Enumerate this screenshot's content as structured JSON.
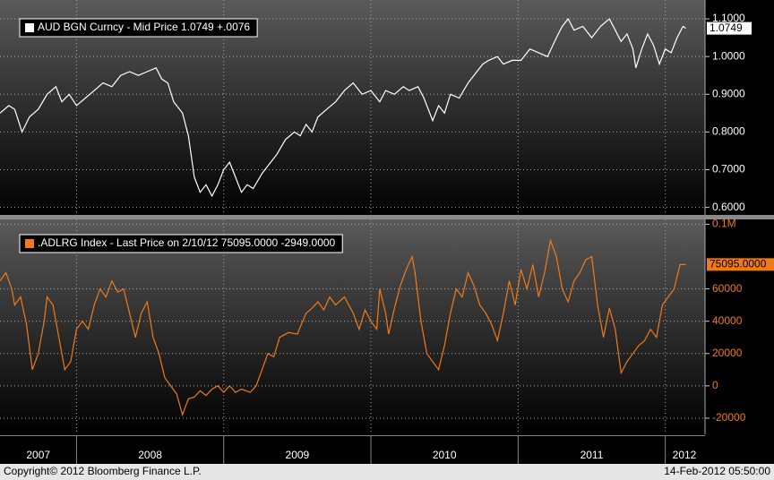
{
  "chart_data": [
    {
      "type": "line",
      "legend": "AUD BGN Curncy - Mid Price  1.0749  +.0076",
      "last_value_label": "1.0749",
      "series": [
        {
          "name": "AUD BGN Curncy",
          "color": "#ffffff",
          "x": [
            2007.48,
            2007.54,
            2007.58,
            2007.63,
            2007.68,
            2007.74,
            2007.8,
            2007.86,
            2007.9,
            2007.95,
            2008.0,
            2008.06,
            2008.12,
            2008.18,
            2008.24,
            2008.3,
            2008.36,
            2008.42,
            2008.48,
            2008.54,
            2008.58,
            2008.62,
            2008.66,
            2008.72,
            2008.76,
            2008.8,
            2008.84,
            2008.88,
            2008.92,
            2008.96,
            2009.0,
            2009.04,
            2009.08,
            2009.12,
            2009.16,
            2009.2,
            2009.26,
            2009.3,
            2009.36,
            2009.42,
            2009.48,
            2009.52,
            2009.56,
            2009.6,
            2009.64,
            2009.7,
            2009.76,
            2009.82,
            2009.88,
            2009.94,
            2010.0,
            2010.06,
            2010.1,
            2010.16,
            2010.22,
            2010.26,
            2010.32,
            2010.36,
            2010.42,
            2010.46,
            2010.5,
            2010.54,
            2010.6,
            2010.66,
            2010.72,
            2010.76,
            2010.8,
            2010.86,
            2010.9,
            2010.96,
            2011.02,
            2011.08,
            2011.14,
            2011.2,
            2011.26,
            2011.3,
            2011.34,
            2011.38,
            2011.44,
            2011.5,
            2011.56,
            2011.62,
            2011.66,
            2011.7,
            2011.74,
            2011.78,
            2011.8,
            2011.84,
            2011.88,
            2011.92,
            2011.96,
            2012.0,
            2012.04,
            2012.08,
            2012.12,
            2012.14
          ],
          "values": [
            0.85,
            0.87,
            0.86,
            0.8,
            0.84,
            0.86,
            0.9,
            0.92,
            0.88,
            0.9,
            0.87,
            0.89,
            0.91,
            0.93,
            0.92,
            0.95,
            0.96,
            0.95,
            0.96,
            0.97,
            0.94,
            0.93,
            0.88,
            0.85,
            0.79,
            0.68,
            0.64,
            0.66,
            0.63,
            0.66,
            0.7,
            0.72,
            0.68,
            0.64,
            0.66,
            0.65,
            0.69,
            0.71,
            0.74,
            0.78,
            0.8,
            0.79,
            0.82,
            0.8,
            0.84,
            0.86,
            0.88,
            0.91,
            0.93,
            0.9,
            0.91,
            0.88,
            0.91,
            0.9,
            0.92,
            0.91,
            0.92,
            0.89,
            0.83,
            0.87,
            0.85,
            0.9,
            0.89,
            0.93,
            0.96,
            0.98,
            0.99,
            1.0,
            0.98,
            0.99,
            0.99,
            1.02,
            1.01,
            1.0,
            1.05,
            1.08,
            1.1,
            1.07,
            1.08,
            1.05,
            1.08,
            1.1,
            1.07,
            1.04,
            1.06,
            1.02,
            0.97,
            1.02,
            1.06,
            1.03,
            0.98,
            1.02,
            1.01,
            1.05,
            1.08,
            1.0749
          ]
        }
      ],
      "xlim": [
        2007.48,
        2012.27
      ],
      "ylim": [
        0.58,
        1.15
      ],
      "yticks": [
        {
          "value": 0.6,
          "label": "0.6000"
        },
        {
          "value": 0.7,
          "label": "0.7000"
        },
        {
          "value": 0.8,
          "label": "0.8000"
        },
        {
          "value": 0.9,
          "label": "0.9000"
        },
        {
          "value": 1.0,
          "label": "1.0000"
        },
        {
          "value": 1.1,
          "label": "1.1000"
        }
      ],
      "grid": true
    },
    {
      "type": "line",
      "legend": ".ADLRG Index - Last Price on 2/10/12  75095.0000  -2949.0000",
      "last_value_label": "75095.0000",
      "series": [
        {
          "name": ".ADLRG Index",
          "color": "#f07a1a",
          "x": [
            2007.48,
            2007.52,
            2007.56,
            2007.58,
            2007.62,
            2007.66,
            2007.7,
            2007.74,
            2007.78,
            2007.8,
            2007.84,
            2007.88,
            2007.92,
            2007.96,
            2008.0,
            2008.04,
            2008.08,
            2008.12,
            2008.16,
            2008.2,
            2008.24,
            2008.28,
            2008.32,
            2008.36,
            2008.4,
            2008.44,
            2008.48,
            2008.52,
            2008.56,
            2008.6,
            2008.64,
            2008.68,
            2008.72,
            2008.76,
            2008.8,
            2008.84,
            2008.88,
            2008.92,
            2008.96,
            2009.0,
            2009.04,
            2009.08,
            2009.12,
            2009.18,
            2009.22,
            2009.26,
            2009.3,
            2009.34,
            2009.38,
            2009.44,
            2009.5,
            2009.56,
            2009.6,
            2009.64,
            2009.68,
            2009.72,
            2009.76,
            2009.82,
            2009.88,
            2009.92,
            2009.96,
            2010.0,
            2010.04,
            2010.06,
            2010.1,
            2010.12,
            2010.16,
            2010.2,
            2010.24,
            2010.28,
            2010.3,
            2010.34,
            2010.38,
            2010.42,
            2010.46,
            2010.5,
            2010.54,
            2010.58,
            2010.62,
            2010.66,
            2010.7,
            2010.74,
            2010.78,
            2010.82,
            2010.86,
            2010.9,
            2010.94,
            2010.98,
            2011.02,
            2011.06,
            2011.1,
            2011.14,
            2011.18,
            2011.22,
            2011.26,
            2011.3,
            2011.34,
            2011.38,
            2011.42,
            2011.46,
            2011.5,
            2011.54,
            2011.58,
            2011.62,
            2011.66,
            2011.7,
            2011.74,
            2011.78,
            2011.82,
            2011.86,
            2011.9,
            2011.94,
            2011.98,
            2012.02,
            2012.06,
            2012.1,
            2012.14
          ],
          "values": [
            65000,
            70000,
            60000,
            50000,
            55000,
            38000,
            10000,
            20000,
            40000,
            55000,
            50000,
            30000,
            10000,
            15000,
            35000,
            40000,
            35000,
            50000,
            60000,
            55000,
            65000,
            58000,
            60000,
            45000,
            30000,
            45000,
            52000,
            30000,
            20000,
            5000,
            0,
            -5000,
            -18000,
            -8000,
            -7000,
            -3000,
            -6000,
            -2000,
            0,
            -4000,
            0,
            -4000,
            -2000,
            -4000,
            0,
            10000,
            20000,
            18000,
            30000,
            33000,
            32000,
            45000,
            48000,
            52000,
            47000,
            55000,
            50000,
            55000,
            45000,
            35000,
            47000,
            40000,
            35000,
            60000,
            45000,
            32000,
            48000,
            62000,
            72000,
            80000,
            70000,
            40000,
            20000,
            15000,
            10000,
            25000,
            45000,
            60000,
            55000,
            70000,
            62000,
            50000,
            45000,
            38000,
            28000,
            45000,
            65000,
            50000,
            72000,
            60000,
            75000,
            55000,
            70000,
            90000,
            80000,
            60000,
            52000,
            65000,
            70000,
            78000,
            80000,
            50000,
            30000,
            48000,
            35000,
            8000,
            15000,
            20000,
            25000,
            28000,
            35000,
            30000,
            50000,
            55000,
            60000,
            75000,
            75095
          ]
        }
      ],
      "xlim": [
        2007.48,
        2012.27
      ],
      "ylim": [
        -30000,
        103000
      ],
      "yticks": [
        -20000,
        0,
        20000,
        40000,
        60000,
        {
          "value": 100000,
          "label": "0.1M"
        }
      ],
      "grid": true
    }
  ],
  "x_axis": {
    "xticks": [
      {
        "value": 2007.74,
        "label": "2007"
      },
      {
        "value": 2008.5,
        "label": "2008"
      },
      {
        "value": 2009.5,
        "label": "2009"
      },
      {
        "value": 2010.5,
        "label": "2010"
      },
      {
        "value": 2011.5,
        "label": "2011"
      },
      {
        "value": 2012.13,
        "label": "2012"
      }
    ],
    "boundaries": [
      2008,
      2009,
      2010,
      2011,
      2012
    ]
  },
  "footer": {
    "left": "Copyright© 2012 Bloomberg Finance L.P.",
    "right": "14-Feb-2012 05:50:00"
  }
}
